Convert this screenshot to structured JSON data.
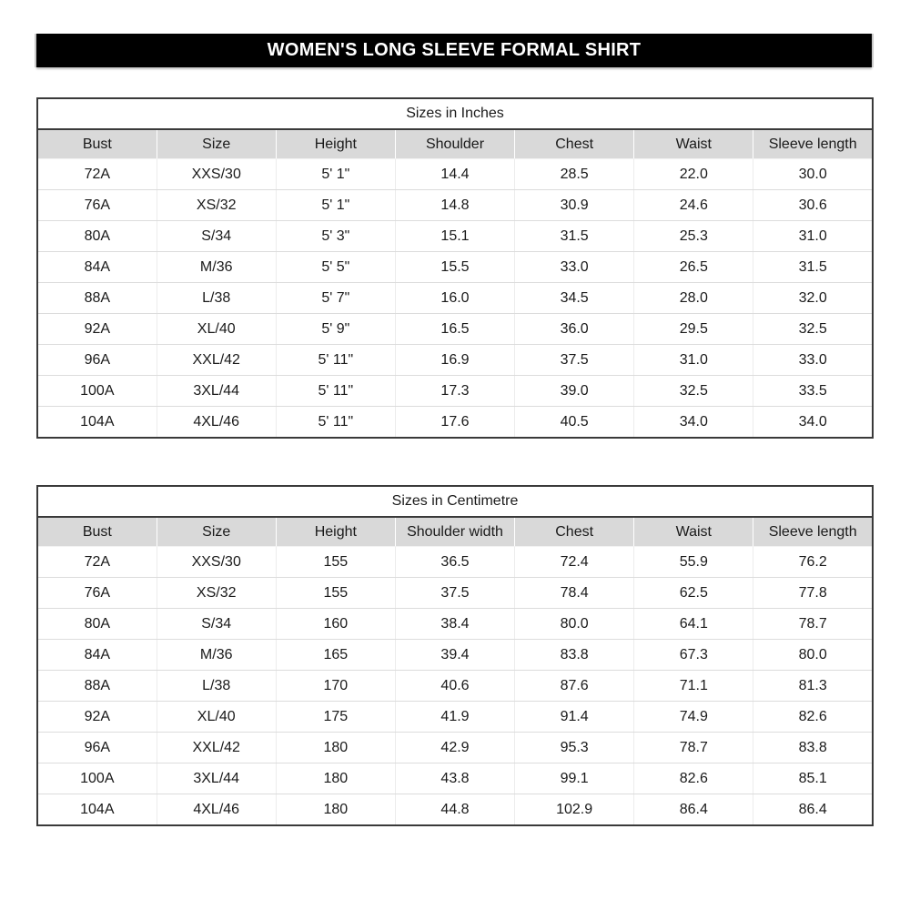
{
  "page_title": "WOMEN'S LONG SLEEVE FORMAL SHIRT",
  "colors": {
    "title_bar_bg": "#000000",
    "title_bar_text": "#ffffff",
    "header_row_bg": "#d9d9d9",
    "outer_border": "#3a3a3a",
    "grid_line": "#dcdcdc"
  },
  "tables": [
    {
      "title": "Sizes in Inches",
      "columns": [
        "Bust",
        "Size",
        "Height",
        "Shoulder",
        "Chest",
        "Waist",
        "Sleeve length"
      ],
      "rows": [
        [
          "72A",
          "XXS/30",
          "5' 1\"",
          "14.4",
          "28.5",
          "22.0",
          "30.0"
        ],
        [
          "76A",
          "XS/32",
          "5' 1\"",
          "14.8",
          "30.9",
          "24.6",
          "30.6"
        ],
        [
          "80A",
          "S/34",
          "5' 3\"",
          "15.1",
          "31.5",
          "25.3",
          "31.0"
        ],
        [
          "84A",
          "M/36",
          "5' 5\"",
          "15.5",
          "33.0",
          "26.5",
          "31.5"
        ],
        [
          "88A",
          "L/38",
          "5' 7\"",
          "16.0",
          "34.5",
          "28.0",
          "32.0"
        ],
        [
          "92A",
          "XL/40",
          "5' 9\"",
          "16.5",
          "36.0",
          "29.5",
          "32.5"
        ],
        [
          "96A",
          "XXL/42",
          "5' 11\"",
          "16.9",
          "37.5",
          "31.0",
          "33.0"
        ],
        [
          "100A",
          "3XL/44",
          "5' 11\"",
          "17.3",
          "39.0",
          "32.5",
          "33.5"
        ],
        [
          "104A",
          "4XL/46",
          "5' 11\"",
          "17.6",
          "40.5",
          "34.0",
          "34.0"
        ]
      ]
    },
    {
      "title": "Sizes in Centimetre",
      "columns": [
        "Bust",
        "Size",
        "Height",
        "Shoulder width",
        "Chest",
        "Waist",
        "Sleeve length"
      ],
      "rows": [
        [
          "72A",
          "XXS/30",
          "155",
          "36.5",
          "72.4",
          "55.9",
          "76.2"
        ],
        [
          "76A",
          "XS/32",
          "155",
          "37.5",
          "78.4",
          "62.5",
          "77.8"
        ],
        [
          "80A",
          "S/34",
          "160",
          "38.4",
          "80.0",
          "64.1",
          "78.7"
        ],
        [
          "84A",
          "M/36",
          "165",
          "39.4",
          "83.8",
          "67.3",
          "80.0"
        ],
        [
          "88A",
          "L/38",
          "170",
          "40.6",
          "87.6",
          "71.1",
          "81.3"
        ],
        [
          "92A",
          "XL/40",
          "175",
          "41.9",
          "91.4",
          "74.9",
          "82.6"
        ],
        [
          "96A",
          "XXL/42",
          "180",
          "42.9",
          "95.3",
          "78.7",
          "83.8"
        ],
        [
          "100A",
          "3XL/44",
          "180",
          "43.8",
          "99.1",
          "82.6",
          "85.1"
        ],
        [
          "104A",
          "4XL/46",
          "180",
          "44.8",
          "102.9",
          "86.4",
          "86.4"
        ]
      ]
    }
  ]
}
